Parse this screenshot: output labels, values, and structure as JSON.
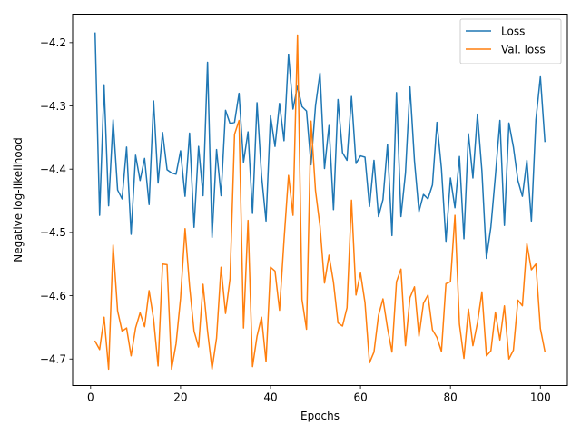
{
  "chart_data": {
    "type": "line",
    "title": "",
    "xlabel": "Epochs",
    "ylabel": "Negative log-likelihood",
    "xlim": [
      -4,
      106
    ],
    "ylim": [
      -4.742,
      -4.155
    ],
    "xticks": [
      0,
      20,
      40,
      60,
      80,
      100
    ],
    "xtick_labels": [
      "0",
      "20",
      "40",
      "60",
      "80",
      "100"
    ],
    "yticks": [
      -4.2,
      -4.3,
      -4.4,
      -4.5,
      -4.6,
      -4.7
    ],
    "ytick_labels": [
      "−4.2",
      "−4.3",
      "−4.4",
      "−4.5",
      "−4.6",
      "−4.7"
    ],
    "grid": false,
    "legend_position": "top-right",
    "x": [
      1,
      2,
      3,
      4,
      5,
      6,
      7,
      8,
      9,
      10,
      11,
      12,
      13,
      14,
      15,
      16,
      17,
      18,
      19,
      20,
      21,
      22,
      23,
      24,
      25,
      26,
      27,
      28,
      29,
      30,
      31,
      32,
      33,
      34,
      35,
      36,
      37,
      38,
      39,
      40,
      41,
      42,
      43,
      44,
      45,
      46,
      47,
      48,
      49,
      50,
      51,
      52,
      53,
      54,
      55,
      56,
      57,
      58,
      59,
      60,
      61,
      62,
      63,
      64,
      65,
      66,
      67,
      68,
      69,
      70,
      71,
      72,
      73,
      74,
      75,
      76,
      77,
      78,
      79,
      80,
      81,
      82,
      83,
      84,
      85,
      86,
      87,
      88,
      89,
      90,
      91,
      92,
      93,
      94,
      95,
      96,
      97,
      98,
      99,
      100,
      101
    ],
    "series": [
      {
        "name": "Loss",
        "color": "#1f77b4",
        "values": [
          -4.185,
          -4.473,
          -4.268,
          -4.458,
          -4.322,
          -4.433,
          -4.447,
          -4.365,
          -4.503,
          -4.378,
          -4.418,
          -4.383,
          -4.456,
          -4.292,
          -4.422,
          -4.342,
          -4.401,
          -4.406,
          -4.408,
          -4.371,
          -4.443,
          -4.343,
          -4.492,
          -4.364,
          -4.442,
          -4.231,
          -4.508,
          -4.369,
          -4.442,
          -4.307,
          -4.328,
          -4.326,
          -4.28,
          -4.389,
          -4.341,
          -4.47,
          -4.295,
          -4.41,
          -4.482,
          -4.316,
          -4.364,
          -4.296,
          -4.355,
          -4.219,
          -4.305,
          -4.269,
          -4.301,
          -4.308,
          -4.393,
          -4.3,
          -4.248,
          -4.399,
          -4.331,
          -4.464,
          -4.29,
          -4.374,
          -4.386,
          -4.285,
          -4.391,
          -4.379,
          -4.381,
          -4.459,
          -4.386,
          -4.475,
          -4.448,
          -4.361,
          -4.505,
          -4.279,
          -4.475,
          -4.406,
          -4.27,
          -4.387,
          -4.467,
          -4.44,
          -4.447,
          -4.425,
          -4.326,
          -4.399,
          -4.514,
          -4.414,
          -4.461,
          -4.38,
          -4.51,
          -4.344,
          -4.414,
          -4.313,
          -4.403,
          -4.541,
          -4.491,
          -4.41,
          -4.323,
          -4.489,
          -4.327,
          -4.365,
          -4.418,
          -4.443,
          -4.386,
          -4.482,
          -4.322,
          -4.254,
          -4.356
        ]
      },
      {
        "name": "Val. loss",
        "color": "#ff7f0e",
        "values": [
          -4.672,
          -4.685,
          -4.634,
          -4.716,
          -4.52,
          -4.624,
          -4.656,
          -4.651,
          -4.695,
          -4.651,
          -4.627,
          -4.649,
          -4.592,
          -4.637,
          -4.711,
          -4.55,
          -4.551,
          -4.716,
          -4.676,
          -4.604,
          -4.494,
          -4.585,
          -4.656,
          -4.681,
          -4.582,
          -4.656,
          -4.716,
          -4.667,
          -4.555,
          -4.628,
          -4.573,
          -4.345,
          -4.323,
          -4.651,
          -4.481,
          -4.712,
          -4.664,
          -4.634,
          -4.704,
          -4.555,
          -4.561,
          -4.623,
          -4.512,
          -4.41,
          -4.473,
          -4.188,
          -4.606,
          -4.653,
          -4.324,
          -4.434,
          -4.49,
          -4.58,
          -4.536,
          -4.579,
          -4.643,
          -4.648,
          -4.619,
          -4.449,
          -4.599,
          -4.564,
          -4.611,
          -4.706,
          -4.689,
          -4.631,
          -4.605,
          -4.651,
          -4.689,
          -4.578,
          -4.558,
          -4.679,
          -4.603,
          -4.586,
          -4.664,
          -4.612,
          -4.599,
          -4.654,
          -4.666,
          -4.688,
          -4.581,
          -4.578,
          -4.473,
          -4.645,
          -4.699,
          -4.621,
          -4.679,
          -4.643,
          -4.594,
          -4.695,
          -4.687,
          -4.626,
          -4.67,
          -4.616,
          -4.7,
          -4.686,
          -4.607,
          -4.616,
          -4.518,
          -4.559,
          -4.55,
          -4.652,
          -4.688
        ]
      }
    ]
  }
}
